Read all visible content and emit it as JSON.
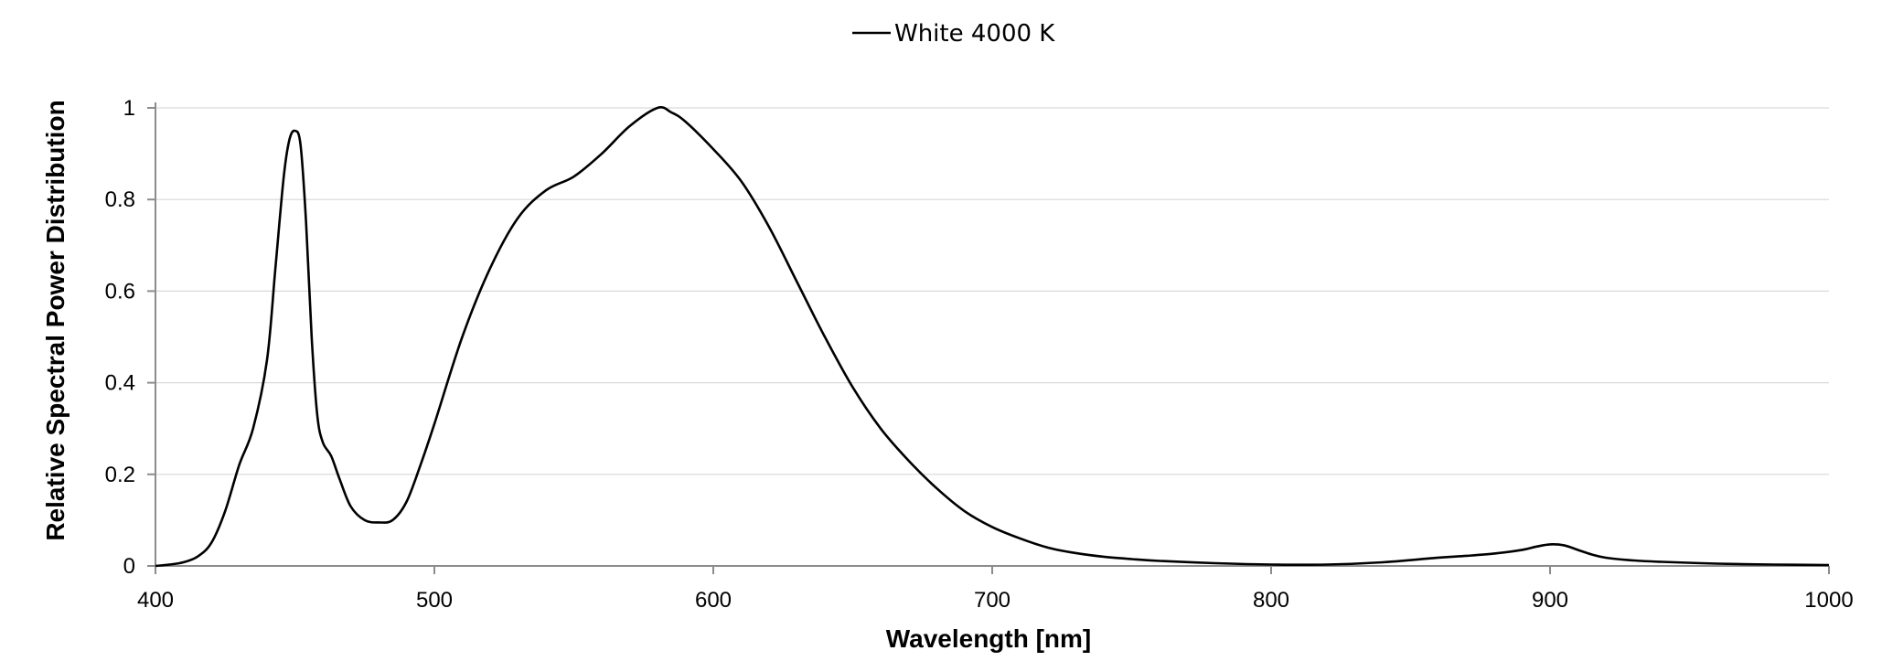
{
  "chart_data": {
    "type": "line",
    "title": "",
    "xlabel": "Wavelength [nm]",
    "ylabel": "Relative Spectral Power Distribution",
    "xlim": [
      400,
      1000
    ],
    "ylim": [
      0,
      1
    ],
    "xticks": [
      400,
      500,
      600,
      700,
      800,
      900,
      1000
    ],
    "yticks": [
      0,
      0.2,
      0.4,
      0.6,
      0.8,
      1
    ],
    "ytick_labels": [
      "0",
      "0.2",
      "0.4",
      "0.6",
      "0.8",
      "1"
    ],
    "grid": "horizontal",
    "legend_position": "top-center",
    "line_color": "#000000",
    "series": [
      {
        "name": "White 4000 K",
        "x": [
          400,
          405,
          410,
          415,
          420,
          425,
          430,
          435,
          440,
          443,
          446,
          448,
          450,
          452,
          454,
          456,
          458,
          460,
          463,
          466,
          470,
          475,
          480,
          485,
          490,
          495,
          500,
          510,
          520,
          530,
          540,
          550,
          560,
          570,
          580,
          585,
          590,
          600,
          610,
          620,
          630,
          640,
          650,
          660,
          670,
          680,
          690,
          700,
          710,
          720,
          730,
          740,
          750,
          760,
          780,
          800,
          820,
          840,
          860,
          870,
          880,
          890,
          895,
          900,
          905,
          910,
          915,
          920,
          930,
          940,
          960,
          980,
          1000
        ],
        "y": [
          0.0,
          0.003,
          0.008,
          0.02,
          0.05,
          0.12,
          0.22,
          0.3,
          0.45,
          0.65,
          0.85,
          0.93,
          0.95,
          0.92,
          0.75,
          0.5,
          0.33,
          0.27,
          0.24,
          0.19,
          0.13,
          0.1,
          0.095,
          0.1,
          0.14,
          0.22,
          0.31,
          0.5,
          0.65,
          0.76,
          0.82,
          0.85,
          0.9,
          0.96,
          1.0,
          0.99,
          0.97,
          0.91,
          0.84,
          0.74,
          0.62,
          0.5,
          0.39,
          0.3,
          0.23,
          0.17,
          0.12,
          0.085,
          0.06,
          0.04,
          0.028,
          0.02,
          0.015,
          0.011,
          0.006,
          0.003,
          0.003,
          0.008,
          0.018,
          0.022,
          0.027,
          0.035,
          0.042,
          0.047,
          0.045,
          0.035,
          0.025,
          0.018,
          0.012,
          0.009,
          0.005,
          0.003,
          0.002
        ]
      }
    ]
  }
}
